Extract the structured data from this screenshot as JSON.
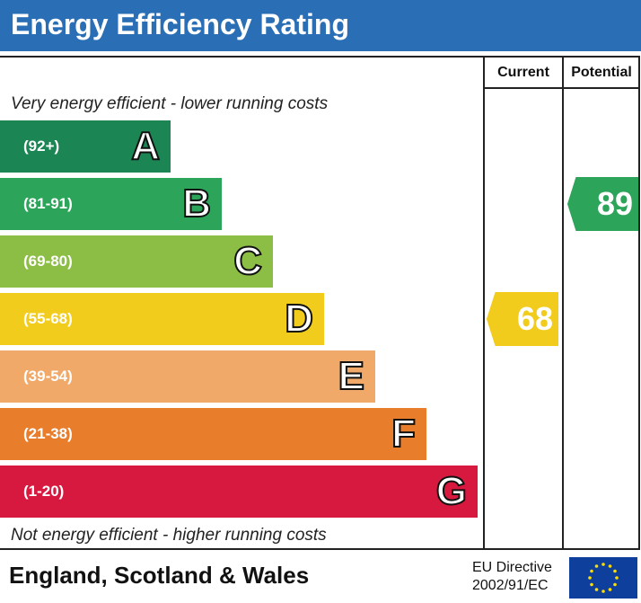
{
  "header": {
    "title": "Energy Efficiency Rating"
  },
  "columns": {
    "current": "Current",
    "potential": "Potential"
  },
  "notes": {
    "top": "Very energy efficient - lower running costs",
    "bottom": "Not energy efficient - higher running costs"
  },
  "chart_data": {
    "type": "bar",
    "title": "Energy Efficiency Rating",
    "categories": [
      "A",
      "B",
      "C",
      "D",
      "E",
      "F",
      "G"
    ],
    "ranges": [
      "(92+)",
      "(81-91)",
      "(69-80)",
      "(55-68)",
      "(39-54)",
      "(21-38)",
      "(1-20)"
    ],
    "colors": [
      "#1b8553",
      "#2ca55a",
      "#8cbd45",
      "#f2cc1d",
      "#f0a969",
      "#e87d2c",
      "#d8193f"
    ],
    "current": {
      "value": 68,
      "band": "D",
      "color": "#f2cc1d"
    },
    "potential": {
      "value": 89,
      "band": "B",
      "color": "#2ca55a"
    }
  },
  "footer": {
    "region": "England, Scotland & Wales",
    "directive_line1": "EU Directive",
    "directive_line2": "2002/91/EC"
  }
}
